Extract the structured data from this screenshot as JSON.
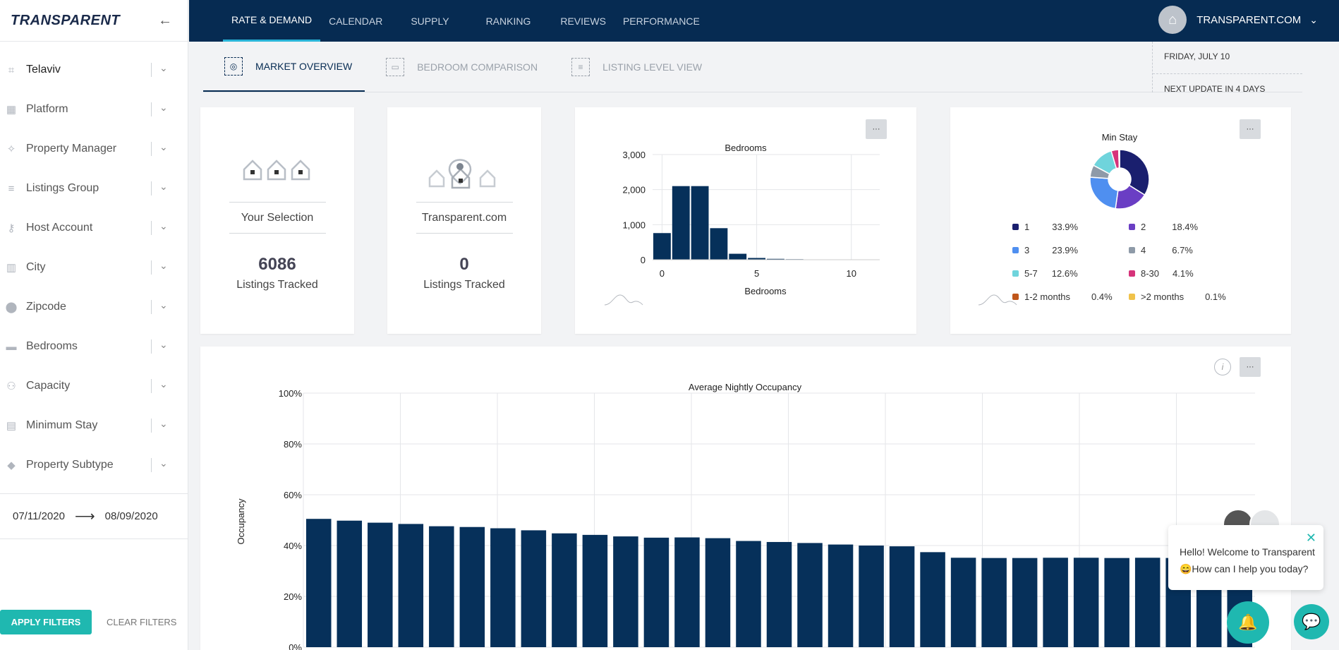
{
  "sidebar": {
    "logo": "TRANSPARENT",
    "filters": [
      {
        "label": "Telaviv",
        "icon": "map-grid-icon"
      },
      {
        "label": "Platform",
        "icon": "building-icon"
      },
      {
        "label": "Property Manager",
        "icon": "handshake-icon"
      },
      {
        "label": "Listings Group",
        "icon": "list-icon"
      },
      {
        "label": "Host Account",
        "icon": "user-key-icon"
      },
      {
        "label": "City",
        "icon": "city-icon"
      },
      {
        "label": "Zipcode",
        "icon": "pin-icon"
      },
      {
        "label": "Bedrooms",
        "icon": "bed-icon"
      },
      {
        "label": "Capacity",
        "icon": "people-icon"
      },
      {
        "label": "Minimum Stay",
        "icon": "calendar-icon"
      },
      {
        "label": "Property Subtype",
        "icon": "tag-icon"
      }
    ],
    "date_from": "07/11/2020",
    "date_to": "08/09/2020",
    "apply_label": "APPLY FILTERS",
    "clear_label": "CLEAR FILTERS"
  },
  "topnav": {
    "tabs": [
      "RATE & DEMAND",
      "CALENDAR",
      "SUPPLY",
      "RANKING",
      "REVIEWS",
      "PERFORMANCE"
    ],
    "user": "TRANSPARENT.COM"
  },
  "subtabs": [
    "MARKET OVERVIEW",
    "BEDROOM COMPARISON",
    "LISTING LEVEL VIEW"
  ],
  "dateinfo": {
    "date": "FRIDAY, JULY 10",
    "update": "NEXT UPDATE IN 4 DAYS"
  },
  "cards": {
    "selection": {
      "name": "Your Selection",
      "count": "6086",
      "sub": "Listings Tracked"
    },
    "transparent": {
      "name": "Transparent.com",
      "count": "0",
      "sub": "Listings Tracked"
    },
    "menu_label": "···"
  },
  "colors": {
    "navy": "#062b52",
    "teal": "#1fb8b0",
    "bar": "#06305a"
  },
  "chart_data": [
    {
      "type": "bar",
      "title": "Bedrooms",
      "xlabel": "Bedrooms",
      "ylabel": "",
      "x": [
        0,
        1,
        2,
        3,
        4,
        5,
        6,
        7,
        8,
        9,
        10,
        11
      ],
      "values": [
        760,
        2100,
        2100,
        900,
        170,
        50,
        25,
        15,
        10,
        8,
        5,
        3
      ],
      "ylim": [
        0,
        3000
      ],
      "yticks": [
        "0",
        "1,000",
        "2,000",
        "3,000"
      ],
      "xticks": [
        "0",
        "5",
        "10"
      ]
    },
    {
      "type": "pie",
      "title": "Min Stay",
      "series": [
        {
          "name": "1",
          "value": 33.9,
          "label": "33.9%",
          "color": "#1a1f6e"
        },
        {
          "name": "2",
          "value": 18.4,
          "label": "18.4%",
          "color": "#6a3ec4"
        },
        {
          "name": "3",
          "value": 23.9,
          "label": "23.9%",
          "color": "#4f8ff0"
        },
        {
          "name": "4",
          "value": 6.7,
          "label": "6.7%",
          "color": "#8e9aa8"
        },
        {
          "name": "5-7",
          "value": 12.6,
          "label": "12.6%",
          "color": "#6fd4dc"
        },
        {
          "name": "8-30",
          "value": 4.1,
          "label": "4.1%",
          "color": "#d6337a"
        },
        {
          "name": "1-2 months",
          "value": 0.4,
          "label": "0.4%",
          "color": "#c0561a"
        },
        {
          "name": ">2 months",
          "value": 0.1,
          "label": "0.1%",
          "color": "#f0c24a"
        }
      ]
    },
    {
      "type": "bar",
      "title": "Average Nightly Occupancy",
      "ylabel": "Occupancy",
      "yticks": [
        "0%",
        "20%",
        "40%",
        "60%",
        "80%",
        "100%"
      ],
      "ylim": [
        0,
        100
      ],
      "values": [
        50.5,
        49.8,
        49.0,
        48.5,
        47.6,
        47.3,
        46.8,
        46.0,
        44.8,
        44.2,
        43.6,
        43.1,
        43.2,
        42.9,
        41.8,
        41.4,
        41.0,
        40.4,
        40.0,
        39.7,
        37.4,
        35.2,
        35.1,
        35.1,
        35.2,
        35.2,
        35.1,
        35.2,
        35.1,
        35.1,
        35.0
      ]
    }
  ],
  "chat": {
    "greeting": "Hello! Welcome to Transparent",
    "question": "😄How can I help you today?"
  }
}
